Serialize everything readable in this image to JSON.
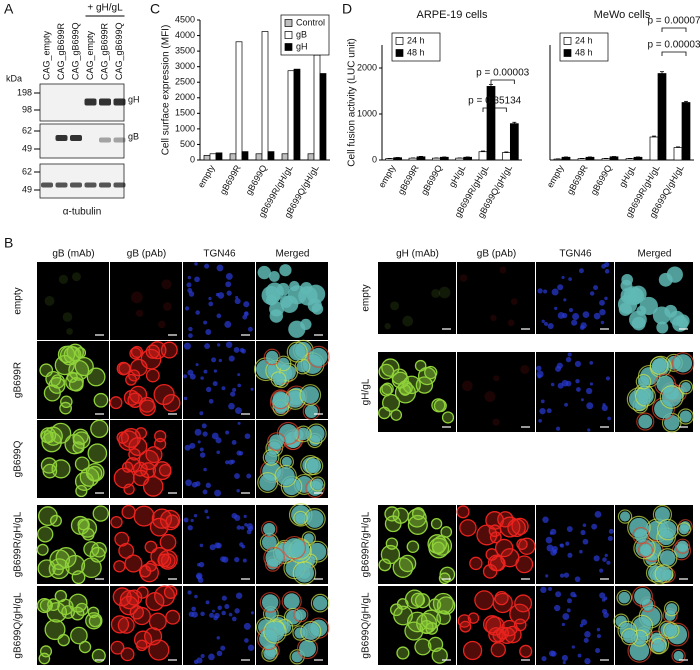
{
  "panel_labels": [
    "A",
    "B",
    "C",
    "D"
  ],
  "blot": {
    "group_label": "+ gH/gL",
    "lanes": [
      "CAG_empty",
      "CAG_gB699R",
      "CAG_gB699Q",
      "CAG_empty",
      "CAG_gB699R",
      "CAG_gB699Q"
    ],
    "unit": "kDa",
    "markers": [
      [
        198,
        98
      ],
      [
        62,
        49
      ],
      [
        62,
        49
      ]
    ],
    "bands": [
      "gH",
      "gB"
    ],
    "loading_control": "α-tubulin"
  },
  "microscopy": [
    {
      "columns": [
        "gB (mAb)",
        "gB (pAb)",
        "TGN46",
        "Merged"
      ],
      "rows": [
        "empty",
        "gB699R",
        "gB699Q",
        "gB699R/gH/gL",
        "gB699Q/gH/gL"
      ]
    },
    {
      "columns": [
        "gH (mAb)",
        "gB (pAb)",
        "TGN46",
        "Merged"
      ],
      "rows": [
        "empty",
        "gH/gL",
        "gB699R/gH/gL",
        "gB699Q/gH/gL"
      ]
    }
  ],
  "chart_data": [
    {
      "type": "bar",
      "y_label": "Cell surface expression (MFI)",
      "categories": [
        "empty",
        "gB699R",
        "gB699Q",
        "gB699R/gH/gL",
        "gB699Q/gH/gL"
      ],
      "series": [
        {
          "name": "Control",
          "color": "#bfbfbf",
          "values": [
            150,
            200,
            200,
            200,
            200
          ]
        },
        {
          "name": "gB",
          "color": "#ffffff",
          "values": [
            200,
            3800,
            4130,
            2870,
            3370
          ]
        },
        {
          "name": "gH",
          "color": "#000000",
          "values": [
            230,
            270,
            270,
            2920,
            2780
          ]
        }
      ],
      "ylim": [
        0,
        4500
      ],
      "yticks": [
        0,
        500,
        1000,
        1500,
        2000,
        2500,
        3000,
        3500,
        4000,
        4500
      ],
      "legend": "upper right"
    },
    {
      "type": "bar",
      "title": "ARPE-19 cells",
      "y_label": "Cell fusion activity (LUC unit)",
      "categories": [
        "empty",
        "gB699R",
        "gB699Q",
        "gH/gL",
        "gB699R/gH/gL",
        "gB699Q/gH/gL"
      ],
      "series": [
        {
          "name": "24 h",
          "color": "#ffffff",
          "values": [
            30,
            40,
            40,
            40,
            180,
            160
          ],
          "errors": [
            5,
            5,
            5,
            5,
            15,
            15
          ]
        },
        {
          "name": "48 h",
          "color": "#000000",
          "values": [
            50,
            70,
            60,
            60,
            1600,
            790
          ],
          "errors": [
            5,
            8,
            6,
            6,
            40,
            30
          ]
        }
      ],
      "ylim": [
        0,
        2500
      ],
      "yticks": [
        0,
        1000,
        2000
      ],
      "legend": "upper left",
      "annotations": [
        "p = 0.35134",
        "p = 0.00003"
      ]
    },
    {
      "type": "bar",
      "title": "MeWo cells",
      "categories": [
        "empty",
        "gB699R",
        "gB699Q",
        "gH/gL",
        "gB699R/gH/gL",
        "gB699Q/gH/gL"
      ],
      "series": [
        {
          "name": "24 h",
          "color": "#ffffff",
          "values": [
            20,
            30,
            30,
            30,
            500,
            270
          ],
          "errors": [
            5,
            5,
            5,
            5,
            20,
            15
          ]
        },
        {
          "name": "48 h",
          "color": "#000000",
          "values": [
            60,
            60,
            70,
            60,
            1880,
            1250
          ],
          "errors": [
            6,
            6,
            6,
            6,
            40,
            25
          ]
        }
      ],
      "ylim": [
        0,
        2500
      ],
      "legend": "upper left",
      "annotations": [
        "p = 0.00003",
        "p = 0.00007"
      ]
    }
  ]
}
